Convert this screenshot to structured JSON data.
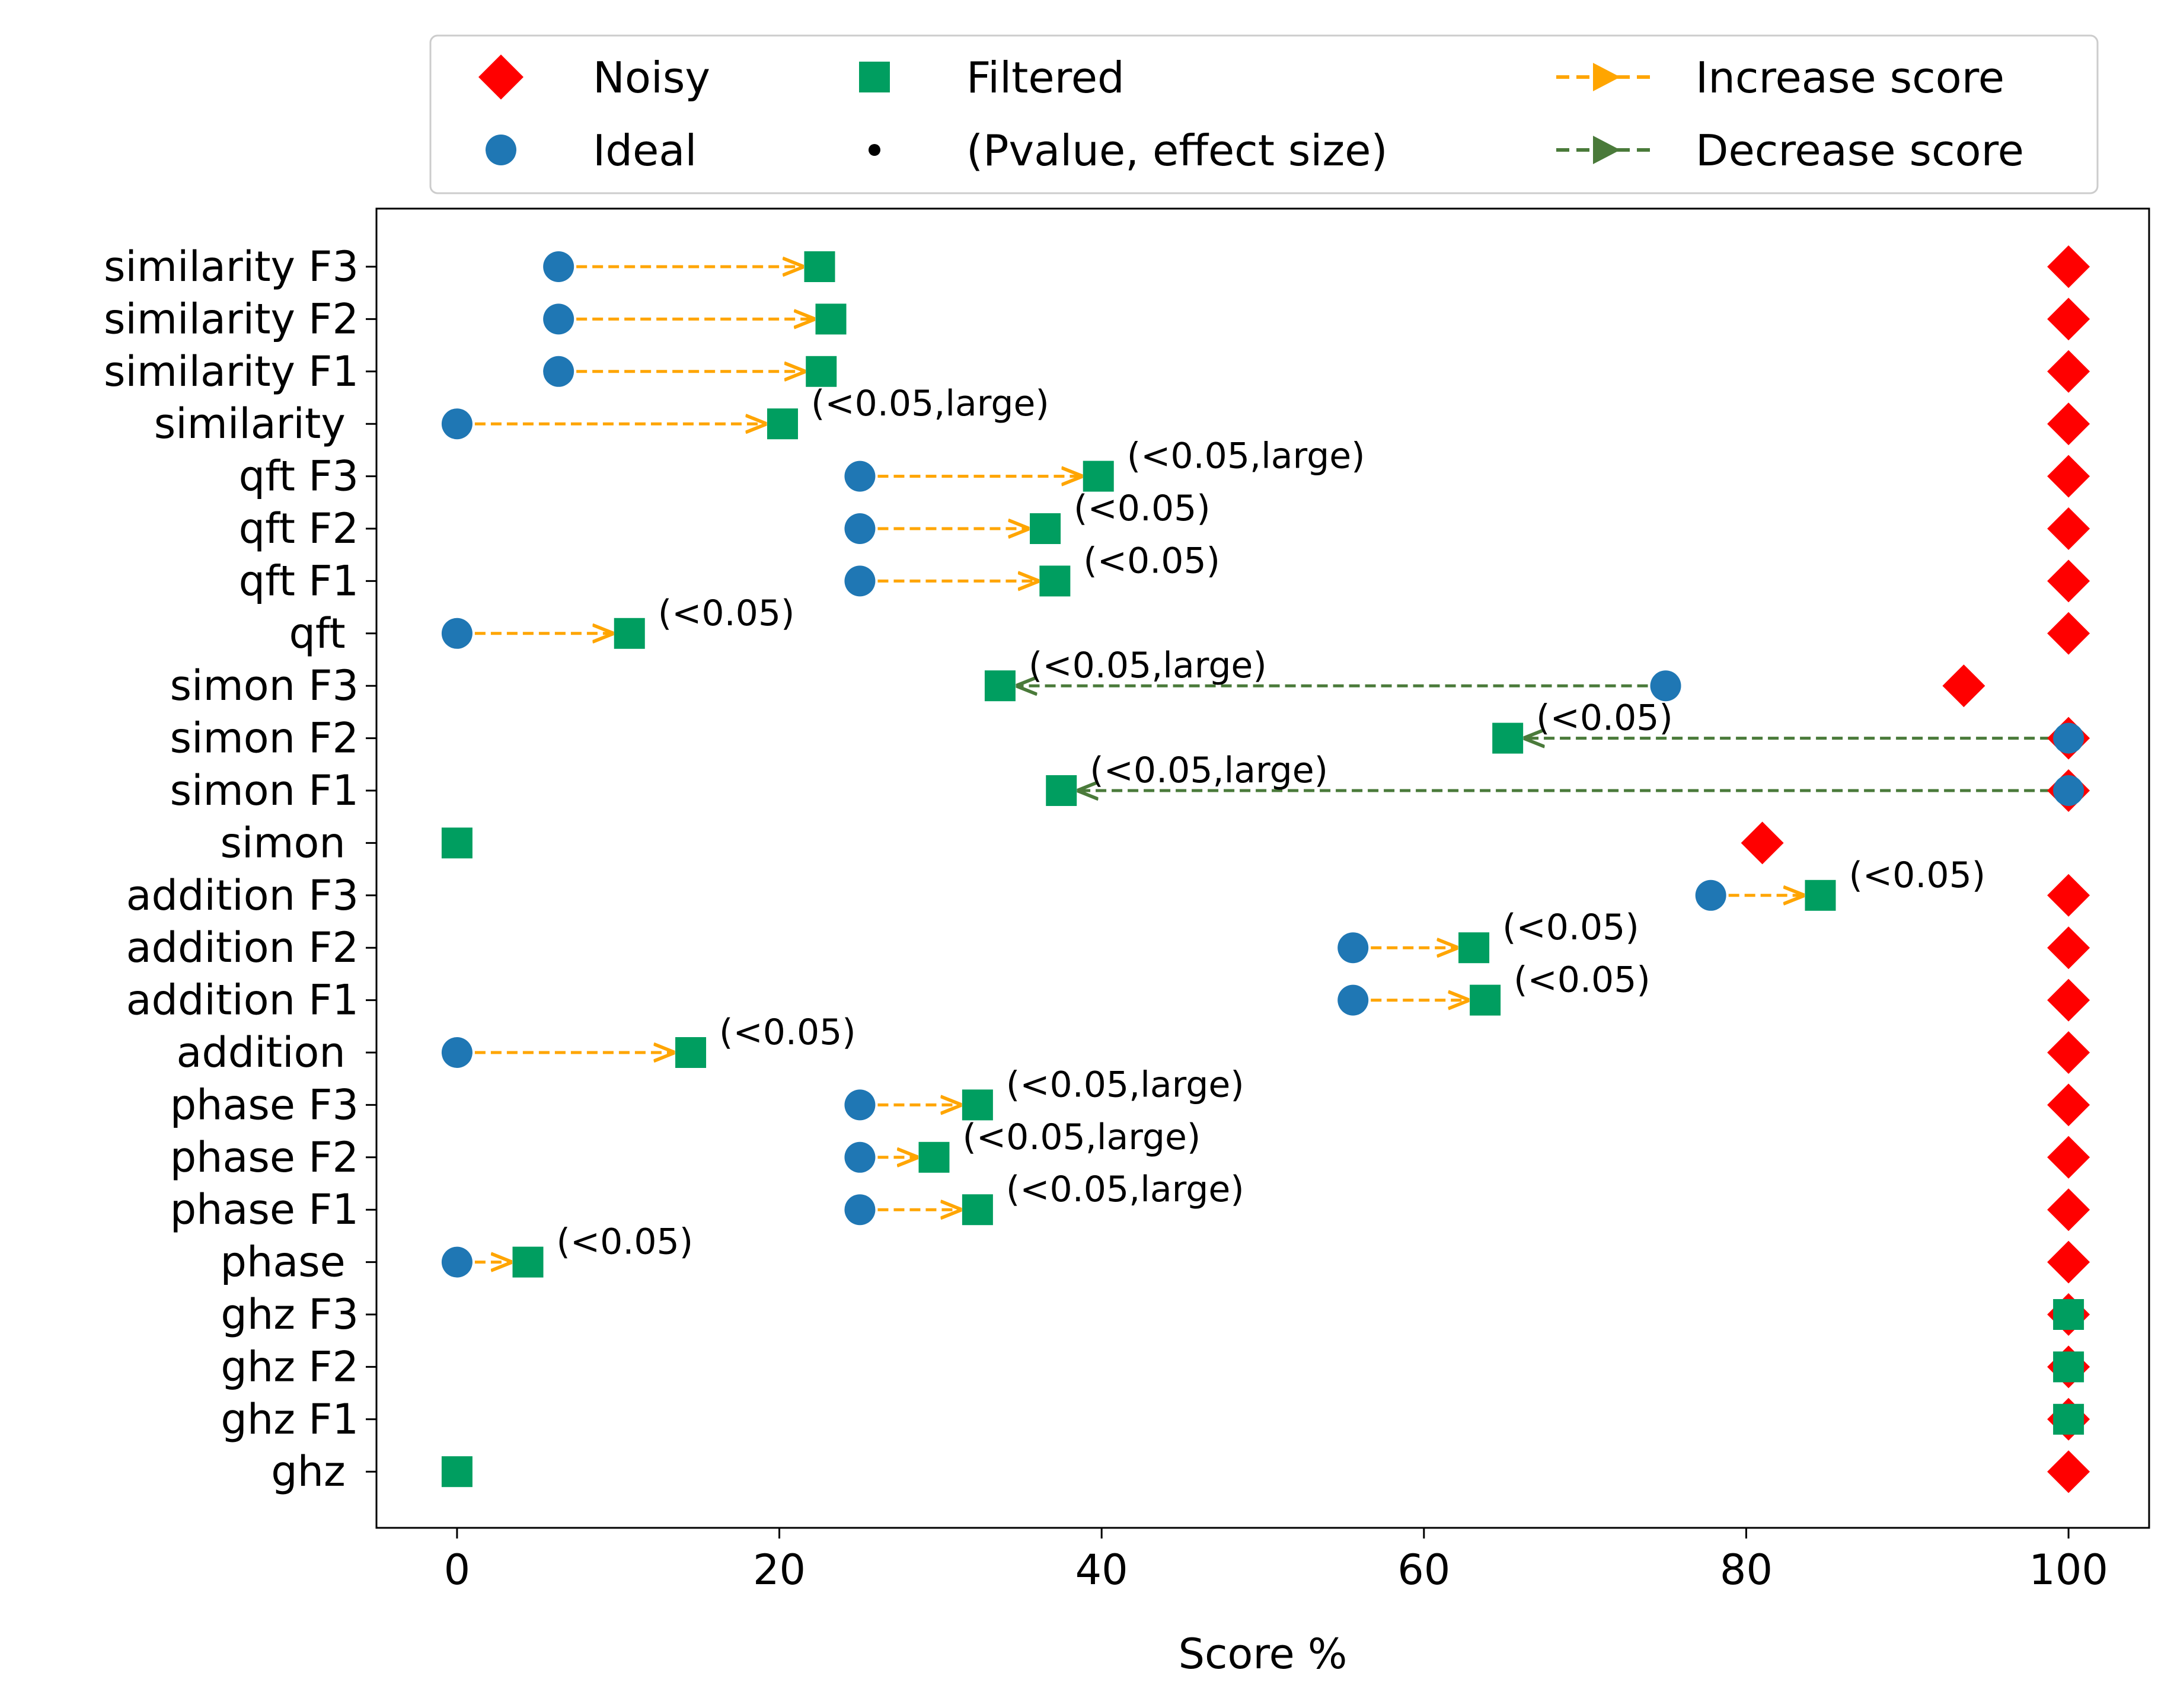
{
  "chart_data": {
    "type": "scatter",
    "xlabel": "Score %",
    "ylabel": "",
    "xlim": [
      -5,
      105
    ],
    "xticks": [
      0,
      20,
      40,
      60,
      80,
      100
    ],
    "categories": [
      "similarity F3",
      "similarity F2",
      "similarity F1",
      "similarity ",
      "qft F3",
      "qft F2",
      "qft F1",
      "qft ",
      "simon F3",
      "simon F2",
      "simon F1",
      "simon ",
      "addition F3",
      "addition F2",
      "addition F1",
      "addition ",
      "phase F3",
      "phase F2",
      "phase F1",
      "phase ",
      "ghz F3",
      "ghz F2",
      "ghz F1",
      "ghz "
    ],
    "series": [
      {
        "name": "Noisy",
        "marker": "diamond",
        "color": "#ff0000",
        "values": [
          100,
          100,
          100,
          100,
          100,
          100,
          100,
          100,
          93.5,
          100,
          100,
          81,
          100,
          100,
          100,
          100,
          100,
          100,
          100,
          100,
          100,
          100,
          100,
          100
        ]
      },
      {
        "name": "Ideal",
        "marker": "circle",
        "color": "#1f77b4",
        "values": [
          6.3,
          6.3,
          6.3,
          0,
          25,
          25,
          25,
          0,
          75,
          100,
          100,
          null,
          77.8,
          55.6,
          55.6,
          0,
          25,
          25,
          25,
          0,
          null,
          null,
          null,
          null
        ]
      },
      {
        "name": "Filtered",
        "marker": "square",
        "color": "#009e60",
        "values": [
          22.5,
          23.2,
          22.6,
          20.2,
          39.8,
          36.5,
          37.1,
          10.7,
          33.7,
          65.2,
          37.5,
          0,
          84.6,
          63.1,
          63.8,
          14.5,
          32.3,
          29.6,
          32.3,
          4.4,
          100,
          100,
          100,
          0
        ]
      }
    ],
    "arrows": [
      {
        "row": 0,
        "from": 6.3,
        "to": 22.5,
        "kind": "increase"
      },
      {
        "row": 1,
        "from": 6.3,
        "to": 23.2,
        "kind": "increase"
      },
      {
        "row": 2,
        "from": 6.3,
        "to": 22.6,
        "kind": "increase"
      },
      {
        "row": 3,
        "from": 0,
        "to": 20.2,
        "kind": "increase"
      },
      {
        "row": 4,
        "from": 25,
        "to": 39.8,
        "kind": "increase"
      },
      {
        "row": 5,
        "from": 25,
        "to": 36.5,
        "kind": "increase"
      },
      {
        "row": 6,
        "from": 25,
        "to": 37.1,
        "kind": "increase"
      },
      {
        "row": 7,
        "from": 0,
        "to": 10.7,
        "kind": "increase"
      },
      {
        "row": 8,
        "from": 75,
        "to": 33.7,
        "kind": "decrease"
      },
      {
        "row": 9,
        "from": 100,
        "to": 65.2,
        "kind": "decrease"
      },
      {
        "row": 10,
        "from": 100,
        "to": 37.5,
        "kind": "decrease"
      },
      {
        "row": 12,
        "from": 77.8,
        "to": 84.6,
        "kind": "increase"
      },
      {
        "row": 13,
        "from": 55.6,
        "to": 63.1,
        "kind": "increase"
      },
      {
        "row": 14,
        "from": 55.6,
        "to": 63.8,
        "kind": "increase"
      },
      {
        "row": 15,
        "from": 0,
        "to": 14.5,
        "kind": "increase"
      },
      {
        "row": 16,
        "from": 25,
        "to": 32.3,
        "kind": "increase"
      },
      {
        "row": 17,
        "from": 25,
        "to": 29.6,
        "kind": "increase"
      },
      {
        "row": 18,
        "from": 25,
        "to": 32.3,
        "kind": "increase"
      },
      {
        "row": 19,
        "from": 0,
        "to": 4.4,
        "kind": "increase"
      }
    ],
    "annotations": [
      {
        "row": 3,
        "x": 20.2,
        "text": "(<0.05,large)"
      },
      {
        "row": 4,
        "x": 39.8,
        "text": "(<0.05,large)"
      },
      {
        "row": 5,
        "x": 36.5,
        "text": "(<0.05)"
      },
      {
        "row": 6,
        "x": 37.1,
        "text": "(<0.05)"
      },
      {
        "row": 7,
        "x": 10.7,
        "text": "(<0.05)"
      },
      {
        "row": 8,
        "x": 33.7,
        "text": "(<0.05,large)"
      },
      {
        "row": 9,
        "x": 65.2,
        "text": "(<0.05)"
      },
      {
        "row": 10,
        "x": 37.5,
        "text": "(<0.05,large)"
      },
      {
        "row": 12,
        "x": 84.6,
        "text": "(<0.05)"
      },
      {
        "row": 13,
        "x": 63.1,
        "text": "(<0.05)"
      },
      {
        "row": 14,
        "x": 63.8,
        "text": "(<0.05)"
      },
      {
        "row": 15,
        "x": 14.5,
        "text": "(<0.05)"
      },
      {
        "row": 16,
        "x": 32.3,
        "text": "(<0.05,large)"
      },
      {
        "row": 17,
        "x": 29.6,
        "text": "(<0.05,large)"
      },
      {
        "row": 18,
        "x": 32.3,
        "text": "(<0.05,large)"
      },
      {
        "row": 19,
        "x": 4.4,
        "text": "(<0.05)"
      }
    ],
    "arrow_colors": {
      "increase": "#ffa500",
      "decrease": "#4a7a3a"
    },
    "legend": {
      "placement": "top",
      "entries": [
        {
          "label": "Noisy",
          "symbol": "diamond",
          "color": "#ff0000"
        },
        {
          "label": "Ideal",
          "symbol": "circle",
          "color": "#1f77b4"
        },
        {
          "label": "Filtered",
          "symbol": "square",
          "color": "#009e60"
        },
        {
          "label": "(Pvalue, effect size)",
          "symbol": "dot",
          "color": "#000000"
        },
        {
          "label": "Increase score",
          "symbol": "arrow",
          "color": "#ffa500"
        },
        {
          "label": "Decrease score",
          "symbol": "arrow",
          "color": "#4a7a3a"
        }
      ]
    },
    "grid": false
  }
}
